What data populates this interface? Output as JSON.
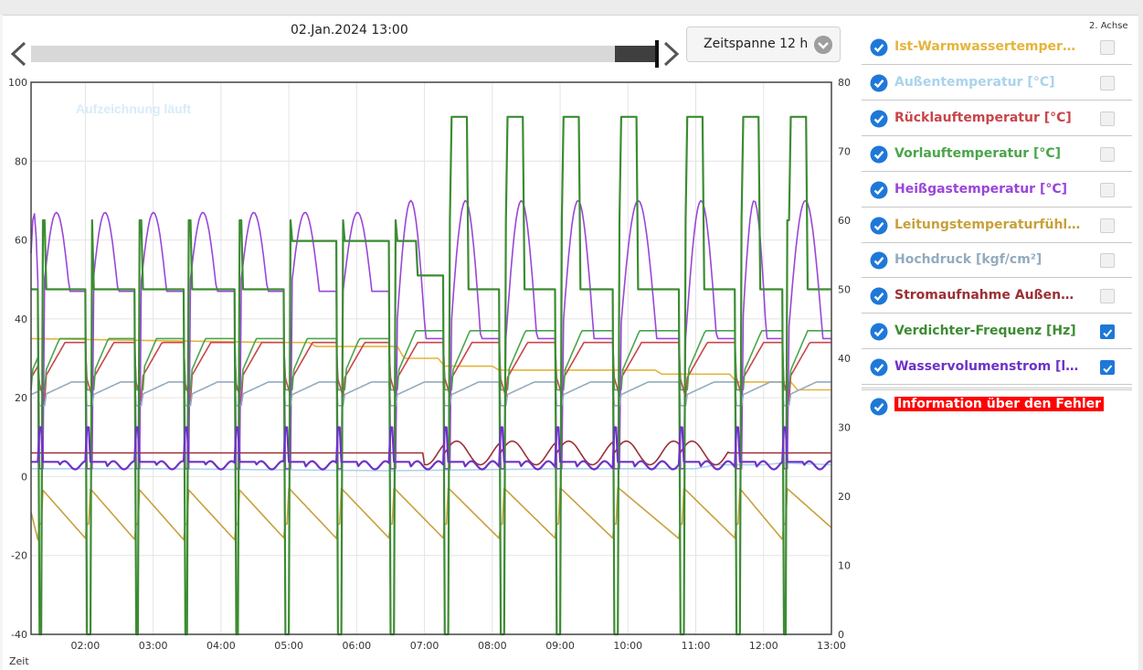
{
  "header": {
    "date": "02.Jan.2024 13:00",
    "timespan": "Zeitspanne 12 h",
    "axis2_label": "2. Achse"
  },
  "colors": {
    "ist": "#e6b43c",
    "aussen": "#aad3ec",
    "ruecklauf": "#c8464b",
    "vorlauf": "#4aa54a",
    "heissgas": "#9a46d8",
    "leitung": "#c8a03c",
    "hochdruck": "#93abbe",
    "strom": "#9b3036",
    "verdichter": "#3c8c32",
    "wasser": "#6e32c8",
    "check": "#1e78d8"
  },
  "legend": [
    {
      "label": "Ist-Warmwassertemperatur [°C]",
      "color": "#e6b43c",
      "axis2": false
    },
    {
      "label": "Außentemperatur [°C]",
      "color": "#aad3ec",
      "axis2": false
    },
    {
      "label": "Rücklauftemperatur [°C]",
      "color": "#c8464b",
      "axis2": false
    },
    {
      "label": "Vorlauftemperatur [°C]",
      "color": "#4aa54a",
      "axis2": false
    },
    {
      "label": "Heißgastemperatur [°C]",
      "color": "#9a46d8",
      "axis2": false
    },
    {
      "label": "Leitungstemperaturfühler ...",
      "color": "#c8a03c",
      "axis2": false
    },
    {
      "label": "Hochdruck [kgf/cm²]",
      "color": "#93abbe",
      "axis2": false
    },
    {
      "label": "Stromaufnahme Außengerä...",
      "color": "#9b3036",
      "axis2": false
    },
    {
      "label": "Verdichter-Frequenz [Hz]",
      "color": "#3c8c32",
      "axis2": true
    },
    {
      "label": "Wasservolumenstrom [l/min]",
      "color": "#6e32c8",
      "axis2": true
    }
  ],
  "error_label": "Information über den Fehler",
  "chart_data": {
    "type": "line",
    "watermark": "Aufzeichnung läuft",
    "xlabel": "Zeit",
    "x_ticks": [
      "02:00",
      "03:00",
      "04:00",
      "05:00",
      "06:00",
      "07:00",
      "08:00",
      "09:00",
      "10:00",
      "11:00",
      "12:00",
      "13:00"
    ],
    "x_range_hours": [
      1.2,
      13.0
    ],
    "y_left": {
      "ticks": [
        100,
        80,
        60,
        40,
        20,
        0,
        -20,
        -40
      ],
      "range": [
        -40,
        100
      ]
    },
    "y_right": {
      "ticks": [
        80,
        70,
        60,
        50,
        40,
        30,
        20,
        10,
        0
      ],
      "range": [
        0,
        80
      ]
    },
    "grid": true,
    "cycle_starts_hours": [
      1.3,
      2.02,
      2.73,
      3.45,
      4.2,
      4.95,
      5.72,
      6.5,
      7.3,
      8.12,
      8.95,
      9.8,
      10.77,
      11.6,
      12.28
    ],
    "series": [
      {
        "name": "Ist-Warmwassertemperatur [°C]",
        "axis": "left",
        "color": "#e6b43c",
        "points": [
          [
            1.2,
            35
          ],
          [
            4.8,
            34
          ],
          [
            5.3,
            34
          ],
          [
            5.4,
            33
          ],
          [
            6.6,
            33
          ],
          [
            6.7,
            30
          ],
          [
            7.2,
            30
          ],
          [
            7.3,
            28
          ],
          [
            8.0,
            28
          ],
          [
            8.1,
            27
          ],
          [
            10.4,
            27
          ],
          [
            10.5,
            26
          ],
          [
            11.5,
            26
          ],
          [
            11.6,
            24
          ],
          [
            12.4,
            24
          ],
          [
            12.5,
            22
          ],
          [
            13.0,
            22
          ]
        ]
      },
      {
        "name": "Außentemperatur [°C]",
        "axis": "left",
        "color": "#aad3ec",
        "points": [
          [
            1.2,
            2
          ],
          [
            3.0,
            2
          ],
          [
            6.5,
            1.5
          ],
          [
            9.0,
            2
          ],
          [
            11.0,
            2
          ],
          [
            11.3,
            3
          ],
          [
            12.0,
            3
          ],
          [
            12.3,
            3.5
          ],
          [
            13.0,
            3
          ]
        ]
      },
      {
        "name": "Rücklauftemperatur [°C]",
        "axis": "left",
        "color": "#c8464b",
        "cycle": "ruecklauf"
      },
      {
        "name": "Vorlauftemperatur [°C]",
        "axis": "left",
        "color": "#4aa54a",
        "cycle": "vorlauf"
      },
      {
        "name": "Heißgastemperatur [°C]",
        "axis": "left",
        "color": "#9a46d8",
        "cycle": "heissgas"
      },
      {
        "name": "Leitungstemperaturfühler ...",
        "axis": "left",
        "color": "#c8a03c",
        "cycle": "leitung"
      },
      {
        "name": "Hochdruck [kgf/cm²]",
        "axis": "left",
        "color": "#93abbe",
        "cycle": "hochdruck"
      },
      {
        "name": "Stromaufnahme Außengerä...",
        "axis": "left",
        "color": "#9b3036",
        "cycle": "strom"
      },
      {
        "name": "Verdichter-Frequenz [Hz]",
        "axis": "right",
        "color": "#3c8c32",
        "cycle": "verdichter"
      },
      {
        "name": "Wasservolumenstrom [l/min]",
        "axis": "right",
        "color": "#6e32c8",
        "cycle": "wasser"
      }
    ]
  }
}
